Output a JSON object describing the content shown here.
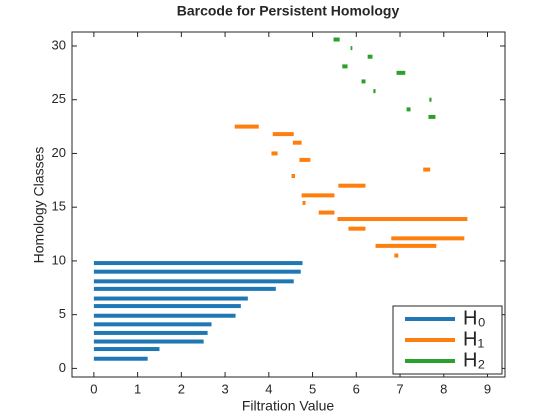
{
  "chart_data": {
    "type": "barcode",
    "title": "Barcode for Persistent Homology",
    "xlabel": "Filtration Value",
    "ylabel": "Homology Classes",
    "xlim": [
      -0.5,
      9.4
    ],
    "ylim": [
      -0.8,
      31.3
    ],
    "xticks": [
      0,
      1,
      2,
      3,
      4,
      5,
      6,
      7,
      8,
      9
    ],
    "yticks": [
      0,
      5,
      10,
      15,
      20,
      25,
      30
    ],
    "legend": "lower right",
    "series": [
      {
        "name": "H₀",
        "color": "#1f77b4",
        "y": [
          0.9,
          1.8,
          2.5,
          3.3,
          4.1,
          4.9,
          5.8,
          6.5,
          7.4,
          8.1,
          9.0,
          9.8
        ],
        "birth": [
          0,
          0,
          0,
          0,
          0,
          0,
          0,
          0,
          0,
          0,
          0,
          0
        ],
        "death": [
          1.23,
          1.5,
          2.51,
          2.6,
          2.69,
          3.24,
          3.36,
          3.52,
          4.16,
          4.57,
          4.73,
          4.77
        ]
      },
      {
        "name": "H₁",
        "color": "#ff7f0e",
        "y": [
          22.5,
          21.8,
          21.0,
          20.0,
          19.4,
          18.5,
          17.9,
          17.0,
          16.1,
          15.4,
          14.5,
          13.9,
          13.0,
          12.1,
          11.4,
          10.5
        ],
        "birth": [
          3.22,
          4.09,
          4.55,
          4.06,
          4.7,
          7.53,
          4.52,
          5.59,
          4.75,
          4.77,
          5.14,
          5.57,
          5.82,
          6.8,
          6.44,
          6.87
        ],
        "death": [
          3.77,
          4.57,
          4.75,
          4.2,
          4.95,
          7.69,
          4.6,
          6.21,
          5.5,
          4.84,
          5.5,
          8.54,
          6.21,
          8.47,
          7.83,
          6.96
        ]
      },
      {
        "name": "H₂",
        "color": "#2ca02c",
        "y": [
          30.6,
          29.8,
          29.0,
          28.1,
          27.5,
          26.7,
          25.8,
          25.0,
          24.1,
          23.4
        ],
        "birth": [
          5.48,
          5.87,
          6.26,
          5.68,
          6.92,
          6.12,
          6.39,
          7.67,
          7.15,
          7.65
        ],
        "death": [
          5.62,
          5.91,
          6.37,
          5.8,
          7.12,
          6.21,
          6.44,
          7.72,
          7.24,
          7.81
        ]
      }
    ]
  }
}
